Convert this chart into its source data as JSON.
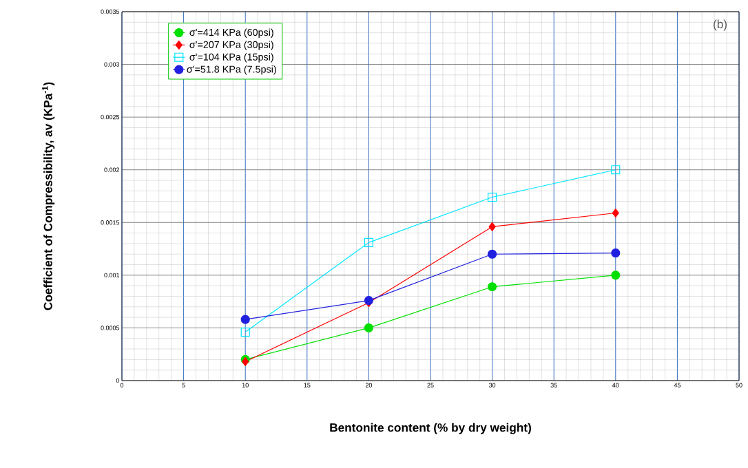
{
  "chart_data": {
    "type": "line",
    "xlabel": "Bentonite content (% by dry weight)",
    "ylabel": "Coefficient of Compressibility, av (KPa$^{-1}$)",
    "x": [
      10,
      20,
      30,
      40
    ],
    "series": [
      {
        "name": "σ'=51.8 KPa (7.5psi)",
        "color": "#2020e0",
        "marker": "circle",
        "values": [
          0.00058,
          0.00076,
          0.0012,
          0.00121
        ]
      },
      {
        "name": "σ'=104 KPa (15psi)",
        "color": "#00e5ff",
        "marker": "square",
        "values": [
          0.00046,
          0.00131,
          0.00174,
          0.002
        ]
      },
      {
        "name": "σ'=207 KPa (30psi)",
        "color": "#ff0000",
        "marker": "diamond",
        "values": [
          0.00018,
          0.00074,
          0.00146,
          0.00159
        ]
      },
      {
        "name": "σ'=414 KPa (60psi)",
        "color": "#00e000",
        "marker": "circle",
        "values": [
          0.0002,
          0.0005,
          0.00089,
          0.001
        ]
      }
    ],
    "xlim": [
      0,
      50
    ],
    "xticks": [
      0,
      5,
      10,
      15,
      20,
      25,
      30,
      35,
      40,
      45,
      50
    ],
    "ylim": [
      0,
      0.0035
    ],
    "yticks": [
      0,
      0.0005,
      0.001,
      0.0015,
      0.002,
      0.0025,
      0.003,
      0.0035
    ],
    "grid": true,
    "legend": "top left",
    "annotations": [
      "(b)"
    ]
  }
}
